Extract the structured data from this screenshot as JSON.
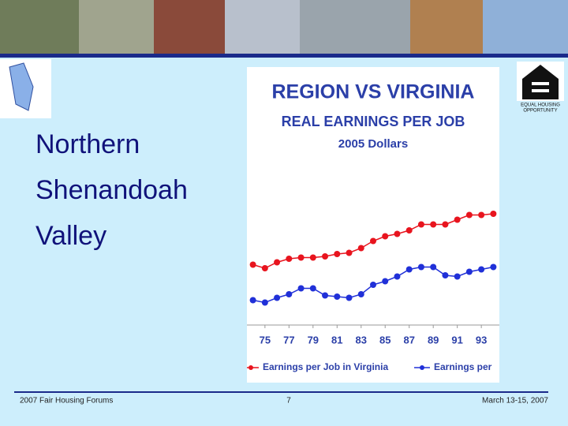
{
  "slide": {
    "title_lines": [
      "Northern",
      "Shenandoah",
      "Valley"
    ],
    "logo_text": [
      "EQUAL HOUSING",
      "OPPORTUNITY"
    ],
    "footer": {
      "left": "2007 Fair Housing Forums",
      "center": "7",
      "right": "March 13-15, 2007"
    }
  },
  "chart_data": {
    "type": "line",
    "title": "REGION VS VIRGINIA",
    "subtitle": "REAL EARNINGS PER JOB",
    "subtitle2": "2005 Dollars",
    "x": [
      74,
      75,
      76,
      77,
      78,
      79,
      80,
      81,
      82,
      83,
      84,
      85,
      86,
      87,
      88,
      89,
      90,
      91,
      92,
      93,
      94
    ],
    "xlim": [
      73.5,
      94.5
    ],
    "xticks": [
      75,
      77,
      79,
      81,
      83,
      85,
      87,
      89,
      91,
      93
    ],
    "ylim": [
      0,
      100
    ],
    "series": [
      {
        "name": "Earnings per Job in Virginia",
        "color": "#e8141e",
        "values": [
          43,
          40,
          45,
          48,
          49,
          49,
          50,
          52,
          53,
          57,
          63,
          67,
          69,
          72,
          77,
          77,
          77,
          81,
          85,
          85,
          86
        ]
      },
      {
        "name": "Earnings per",
        "color": "#2030d8",
        "values": [
          13,
          11,
          15,
          18,
          23,
          23,
          17,
          16,
          15,
          18,
          26,
          29,
          33,
          39,
          41,
          41,
          34,
          33,
          37,
          39,
          41
        ]
      }
    ]
  }
}
